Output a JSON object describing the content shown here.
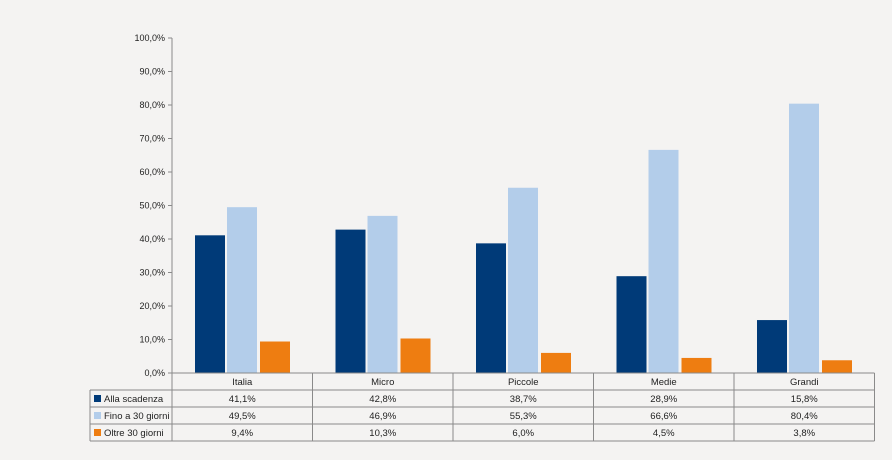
{
  "chart_data": {
    "type": "bar",
    "title": "",
    "xlabel": "",
    "ylabel": "",
    "ylim": [
      0,
      100
    ],
    "y_ticks": [
      "0,0%",
      "10,0%",
      "20,0%",
      "30,0%",
      "40,0%",
      "50,0%",
      "60,0%",
      "70,0%",
      "80,0%",
      "90,0%",
      "100,0%"
    ],
    "categories": [
      "Italia",
      "Micro",
      "Piccole",
      "Medie",
      "Grandi"
    ],
    "series": [
      {
        "name": "Alla scadenza",
        "color": "#003a78",
        "values": [
          41.1,
          42.8,
          38.7,
          28.9,
          15.8
        ],
        "labels": [
          "41,1%",
          "42,8%",
          "38,7%",
          "28,9%",
          "15,8%"
        ]
      },
      {
        "name": "Fino a 30 giorni",
        "color": "#b3cdea",
        "values": [
          49.5,
          46.9,
          55.3,
          66.6,
          80.4
        ],
        "labels": [
          "49,5%",
          "46,9%",
          "55,3%",
          "66,6%",
          "80,4%"
        ]
      },
      {
        "name": "Oltre 30 giorni",
        "color": "#ee7d11",
        "values": [
          9.4,
          10.3,
          6.0,
          4.5,
          3.8
        ],
        "labels": [
          "9,4%",
          "10,3%",
          "6,0%",
          "4,5%",
          "3,8%"
        ]
      }
    ],
    "grid": false,
    "legend": "data-table-left"
  }
}
